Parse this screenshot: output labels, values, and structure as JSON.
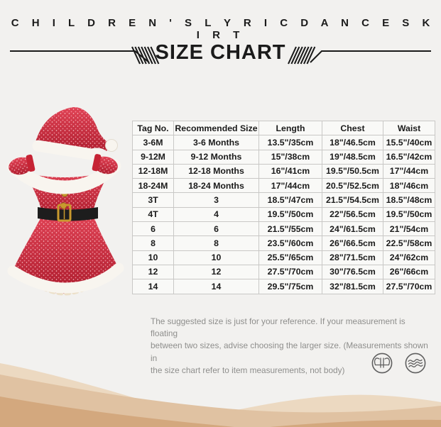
{
  "header": {
    "brand_title": "C H I L D R E N ' S   L Y R I C   D A N C E   S K I R T",
    "section_title": "SIZE CHART"
  },
  "product": {
    "image_alt": "Red sequin Santa dress costume with white fur trim, black belt and matching Santa hat"
  },
  "size_table": {
    "columns": [
      "Tag No.",
      "Recommended Size",
      "Length",
      "Chest",
      "Waist"
    ],
    "rows": [
      [
        "3-6M",
        "3-6 Months",
        "13.5\"/35cm",
        "18\"/46.5cm",
        "15.5\"/40cm"
      ],
      [
        "9-12M",
        "9-12 Months",
        "15\"/38cm",
        "19\"/48.5cm",
        "16.5\"/42cm"
      ],
      [
        "12-18M",
        "12-18 Months",
        "16\"/41cm",
        "19.5\"/50.5cm",
        "17\"/44cm"
      ],
      [
        "18-24M",
        "18-24 Months",
        "17\"/44cm",
        "20.5\"/52.5cm",
        "18\"/46cm"
      ],
      [
        "3T",
        "3",
        "18.5\"/47cm",
        "21.5\"/54.5cm",
        "18.5\"/48cm"
      ],
      [
        "4T",
        "4",
        "19.5\"/50cm",
        "22\"/56.5cm",
        "19.5\"/50cm"
      ],
      [
        "6",
        "6",
        "21.5\"/55cm",
        "24\"/61.5cm",
        "21\"/54cm"
      ],
      [
        "8",
        "8",
        "23.5\"/60cm",
        "26\"/66.5cm",
        "22.5\"/58cm"
      ],
      [
        "10",
        "10",
        "25.5\"/65cm",
        "28\"/71.5cm",
        "24\"/62cm"
      ],
      [
        "12",
        "12",
        "27.5\"/70cm",
        "30\"/76.5cm",
        "26\"/66cm"
      ],
      [
        "14",
        "14",
        "29.5\"/75cm",
        "32\"/81.5cm",
        "27.5\"/70cm"
      ]
    ]
  },
  "note": {
    "lines": [
      "The suggested size is just for your reference. If your measurement is floating",
      "between two sizes, advise choosing the larger size. (Measurements shown in",
      "the size chart refer to item measurements, not body)"
    ]
  },
  "care_icons": [
    {
      "name": "no-wring-icon"
    },
    {
      "name": "fabric-waves-icon"
    }
  ],
  "colors": {
    "bg": "#f2f1ef",
    "line_dark": "#1a1a1a",
    "text_dark": "#1b1b1b",
    "note_gray": "#8e8e8c",
    "table_border": "#c9c8c6",
    "cell_bg": "#f9f9f7",
    "sequin_red": "#e04355",
    "sequin_deep": "#b01f30",
    "sequin_cuff": "#c62334",
    "sparkle_pink": "#ff9fae",
    "sparkle_light": "#ffdfe3",
    "fur_white": "#f8f5ef",
    "belt_black": "#1d1d1d",
    "gold": "#c99a2e",
    "tulle_cream": "#ece0c9",
    "tulle_red": "#d6475a",
    "icon_gray": "#5f5f5f",
    "wave_light": "#ecd9c1",
    "wave_mid": "#e0c2a2",
    "wave_dark": "#d3a87e"
  }
}
